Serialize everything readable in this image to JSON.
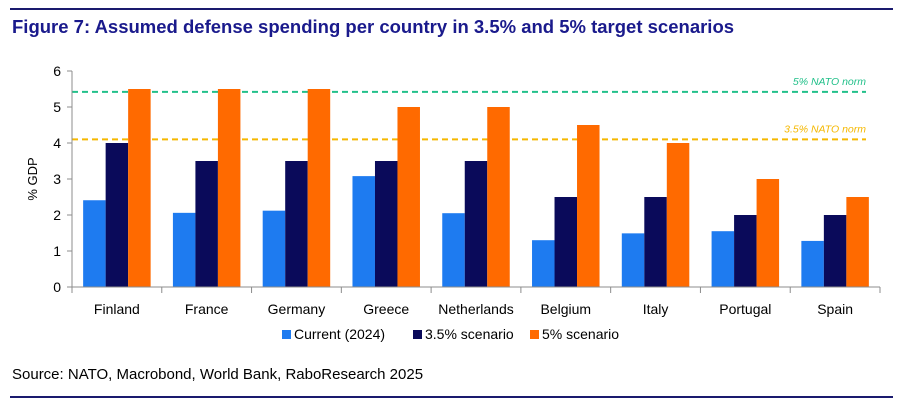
{
  "figure": {
    "title": "Figure 7: Assumed defense spending per country in 3.5% and 5% target scenarios",
    "source": "Source: NATO, Macrobond, World Bank, RaboResearch 2025"
  },
  "colors": {
    "current": "#1e7bf0",
    "scenario_35": "#0a0a5a",
    "scenario_5": "#ff6a00",
    "norm_5": "#22c08a",
    "norm_35": "#f5b800",
    "rules": "#1a1a6e"
  },
  "chart_data": {
    "type": "bar",
    "ylabel": "% GDP",
    "xlabel": "",
    "ylim": [
      0,
      6
    ],
    "yticks": [
      "0",
      "1",
      "2",
      "3",
      "4",
      "5",
      "6"
    ],
    "grid": false,
    "legend": "bottom",
    "categories": [
      "Finland",
      "France",
      "Germany",
      "Greece",
      "Netherlands",
      "Belgium",
      "Italy",
      "Portugal",
      "Spain"
    ],
    "series": [
      {
        "name": "Current (2024)",
        "values": [
          2.41,
          2.06,
          2.12,
          3.08,
          2.05,
          1.3,
          1.49,
          1.55,
          1.28
        ]
      },
      {
        "name": "3.5% scenario",
        "values": [
          4.0,
          3.5,
          3.5,
          3.5,
          3.5,
          2.5,
          2.5,
          2.0,
          2.0
        ]
      },
      {
        "name": "5% scenario",
        "values": [
          5.5,
          5.5,
          5.5,
          5.0,
          5.0,
          4.5,
          4.0,
          3.0,
          2.5
        ]
      }
    ],
    "reference_lines": [
      {
        "label": "5% NATO norm",
        "value": 5.42
      },
      {
        "label": "3.5% NATO norm",
        "value": 4.1
      }
    ]
  }
}
